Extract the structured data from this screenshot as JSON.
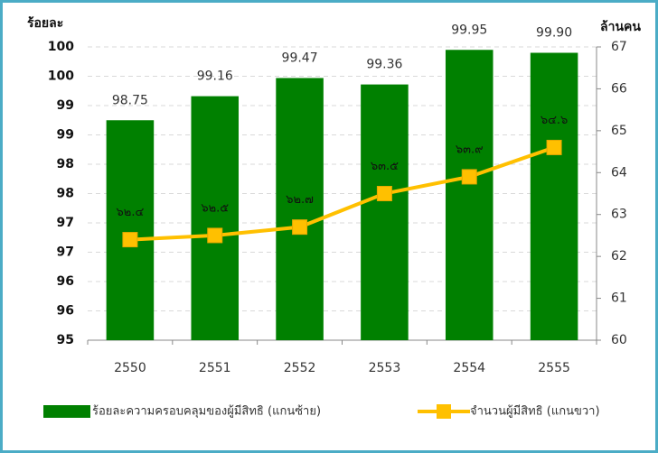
{
  "chart_data": {
    "type": "bar_line",
    "y_label": "ร้อยละ",
    "y2_label": "ล้านคน",
    "categories": [
      "2550",
      "2551",
      "2552",
      "2553",
      "2554",
      "2555"
    ],
    "series": [
      {
        "name": "ร้อยละความครอบคลุมของผู้มีสิทธิ (แกนซ้าย)",
        "type": "bar",
        "color": "#008000",
        "values": [
          98.75,
          99.16,
          99.47,
          99.36,
          99.95,
          99.9
        ],
        "value_labels": [
          "98.75",
          "99.16",
          "99.47",
          "99.36",
          "99.95",
          "99.90"
        ]
      },
      {
        "name": "จำนวนผู้มีสิทธิ (แกนขวา)",
        "type": "line",
        "axis": "y2",
        "color": "#ffc000",
        "values": [
          62.4,
          62.5,
          62.7,
          63.5,
          63.9,
          64.6
        ],
        "value_labels": [
          "๖๒.๔",
          "๖๒.๕",
          "๖๒.๗",
          "๖๓.๕",
          "๖๓.๙",
          "๖๔.๖"
        ]
      }
    ],
    "ylim": [
      95,
      100
    ],
    "yticks": [
      95,
      {
        "value": 95.5,
        "label": "96"
      },
      96,
      {
        "value": 96.5,
        "label": "97"
      },
      97,
      {
        "value": 97.5,
        "label": "98"
      },
      98,
      {
        "value": 98.5,
        "label": "99"
      },
      99,
      {
        "value": 99.5,
        "label": "100"
      },
      100
    ],
    "y2lim": [
      60,
      67
    ],
    "y2ticks": [
      60,
      61,
      62,
      63,
      64,
      65,
      66,
      67
    ],
    "grid": true,
    "legend": "bottom"
  }
}
